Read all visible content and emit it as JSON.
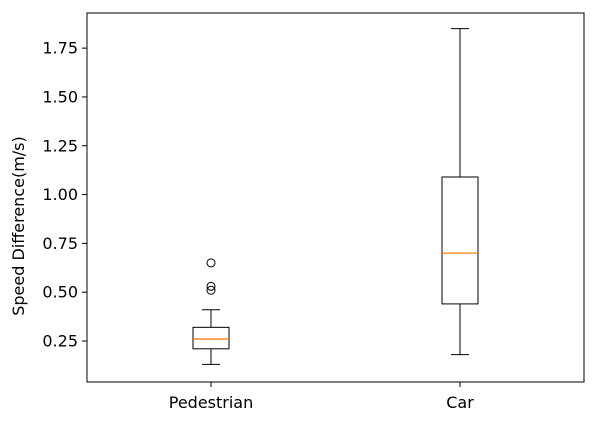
{
  "chart_data": {
    "type": "box",
    "title": "",
    "xlabel": "",
    "ylabel": "Speed Difference(m/s)",
    "ylim": [
      0.04,
      1.93
    ],
    "yticks": [
      0.25,
      0.5,
      0.75,
      1.0,
      1.25,
      1.5,
      1.75
    ],
    "ytick_labels": [
      "0.25",
      "0.50",
      "0.75",
      "1.00",
      "1.25",
      "1.50",
      "1.75"
    ],
    "categories": [
      "Pedestrian",
      "Car"
    ],
    "grid": false,
    "boxes": [
      {
        "category": "Pedestrian",
        "whisker_low": 0.13,
        "q1": 0.21,
        "median": 0.26,
        "q3": 0.32,
        "whisker_high": 0.41,
        "outliers": [
          0.51,
          0.53,
          0.65
        ]
      },
      {
        "category": "Car",
        "whisker_low": 0.18,
        "q1": 0.44,
        "median": 0.7,
        "q3": 1.09,
        "whisker_high": 1.85,
        "outliers": []
      }
    ],
    "colors": {
      "box": "#000000",
      "median": "#ff7f0e",
      "outlier": "#000000"
    }
  }
}
